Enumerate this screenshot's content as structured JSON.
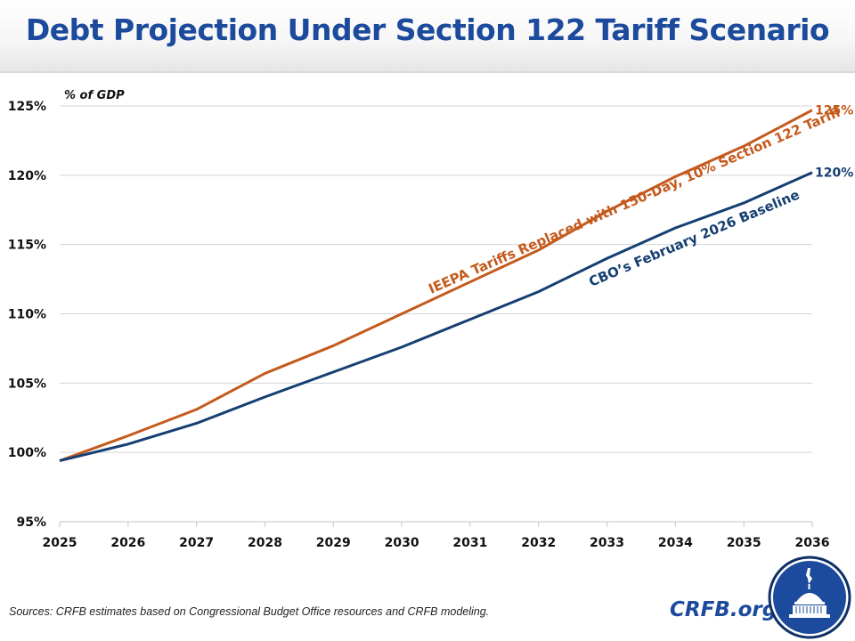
{
  "header": {
    "title": "Debt Projection Under Section 122 Tariff Scenario"
  },
  "chart_data": {
    "type": "line",
    "title": "Debt Projection Under Section 122 Tariff Scenario",
    "ylabel": "% of GDP",
    "xlabel": "",
    "x": [
      "2025",
      "2026",
      "2027",
      "2028",
      "2029",
      "2030",
      "2031",
      "2032",
      "2033",
      "2034",
      "2035",
      "2036"
    ],
    "ylim": [
      95,
      125
    ],
    "yticks": [
      95,
      100,
      105,
      110,
      115,
      120,
      125
    ],
    "ytick_labels": [
      "95%",
      "100%",
      "105%",
      "110%",
      "115%",
      "120%",
      "125%"
    ],
    "grid": true,
    "legend": "none (inline series labels along lines)",
    "series": [
      {
        "name": "IEEPA Tariffs Replaced with 150-Day, 10% Section 122 Tariff",
        "color": "#c55a1d",
        "values": [
          99.4,
          101.2,
          103.1,
          105.7,
          107.7,
          110.0,
          112.3,
          114.6,
          117.4,
          119.9,
          122.1,
          124.7
        ],
        "end_label": "125%"
      },
      {
        "name": "CBO’s February 2026 Baseline",
        "color": "#153f72",
        "values": [
          99.4,
          100.6,
          102.1,
          104.0,
          105.8,
          107.6,
          109.6,
          111.6,
          114.0,
          116.2,
          118.0,
          120.2
        ],
        "end_label": "120%"
      }
    ]
  },
  "footer": {
    "source": "Sources: CRFB estimates based on Congressional Budget Office resources and CRFB modeling.",
    "brand": "CRFB.org",
    "logo_icon": "capitol-dome-icon"
  }
}
